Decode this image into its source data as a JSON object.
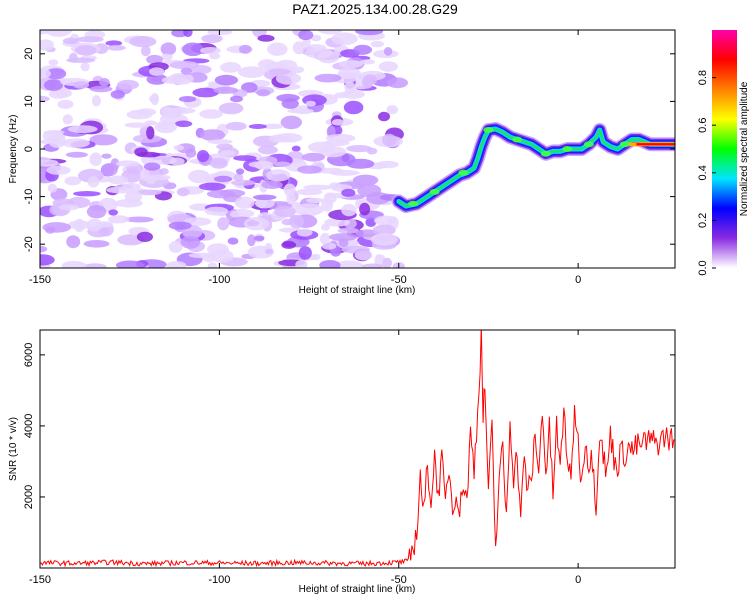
{
  "title": "PAZ1.2025.134.00.28.G29",
  "chart_data": [
    {
      "type": "heatmap",
      "xlabel": "Height of straight line (km)",
      "ylabel": "Frequency (Hz)",
      "xlim": [
        -150,
        27
      ],
      "ylim": [
        -25,
        25
      ],
      "xticks": [
        -150,
        -100,
        -50,
        0
      ],
      "yticks": [
        -20,
        -10,
        0,
        10,
        20
      ],
      "noise_region_x": [
        -150,
        -50
      ],
      "signal_track": {
        "x": [
          -50,
          -48,
          -45,
          -42,
          -40,
          -37,
          -35,
          -33,
          -31,
          -29,
          -28,
          -27,
          -26,
          -25,
          -23,
          -21,
          -19,
          -17,
          -15,
          -13,
          -11,
          -9,
          -7,
          -5,
          -3,
          -1,
          1,
          3,
          5,
          6,
          7,
          9,
          11,
          13,
          15,
          17,
          20,
          23,
          27
        ],
        "y": [
          -11,
          -12,
          -11.5,
          -10,
          -9,
          -7.5,
          -6.5,
          -5.5,
          -5,
          -4,
          -2,
          0.5,
          2.5,
          4,
          4.2,
          3.5,
          2.5,
          2,
          1.5,
          1,
          0,
          -1,
          -0.5,
          -0.5,
          0,
          0,
          0,
          1,
          2.5,
          4,
          1.5,
          0.5,
          0,
          1,
          2,
          2,
          1,
          1,
          1
        ]
      },
      "colorbar": {
        "label": "Normalized spectral amplitude",
        "range": [
          0,
          1
        ],
        "ticks": [
          0.0,
          0.2,
          0.4,
          0.6,
          0.8
        ],
        "colors": [
          "#ffffff",
          "#8a2be2",
          "#0000ff",
          "#00e5ff",
          "#00ff00",
          "#ffff00",
          "#ff8000",
          "#ff0000",
          "#ff00aa"
        ]
      }
    },
    {
      "type": "line",
      "xlabel": "Height of straight line (km)",
      "ylabel": "SNR (10 * v/v)",
      "xlim": [
        -150,
        27
      ],
      "ylim": [
        0,
        6700
      ],
      "xticks": [
        -150,
        -100,
        -50,
        0
      ],
      "yticks": [
        2000,
        4000,
        6000
      ],
      "grid": false,
      "series": [
        {
          "color": "#ff0000",
          "x": [
            -150,
            -140,
            -130,
            -120,
            -110,
            -100,
            -90,
            -80,
            -70,
            -60,
            -50,
            -47,
            -45,
            -44,
            -43,
            -42,
            -41,
            -40,
            -39,
            -38,
            -37,
            -36,
            -35,
            -34,
            -33,
            -32,
            -31,
            -30,
            -29,
            -28,
            -27,
            -26.5,
            -26,
            -25,
            -24,
            -23,
            -22,
            -21,
            -20,
            -19,
            -18,
            -17,
            -16,
            -15,
            -14,
            -13,
            -12,
            -11,
            -10,
            -9,
            -8,
            -7,
            -6,
            -5,
            -4,
            -3,
            -2,
            -1,
            0,
            1,
            2,
            3,
            4,
            5,
            6,
            7,
            8,
            9,
            10,
            11,
            12,
            13,
            14,
            15,
            16,
            18,
            20,
            22,
            24,
            27
          ],
          "y": [
            150,
            130,
            160,
            120,
            150,
            140,
            130,
            150,
            140,
            120,
            160,
            200,
            1000,
            2600,
            1500,
            2900,
            1900,
            3100,
            2100,
            3000,
            1800,
            2900,
            1600,
            2300,
            1500,
            2500,
            1900,
            3800,
            2800,
            4400,
            6600,
            4300,
            5100,
            2100,
            3900,
            500,
            2600,
            3300,
            1400,
            4200,
            2600,
            3200,
            1500,
            3000,
            2200,
            2400,
            3900,
            2500,
            4600,
            2600,
            3900,
            2100,
            4000,
            2700,
            4500,
            3100,
            2300,
            4600,
            3500,
            2400,
            3700,
            2900,
            3100,
            1800,
            3900,
            3200,
            2600,
            3800,
            3100,
            2900,
            3300,
            3200,
            3400,
            3300,
            3400,
            3500,
            3600,
            3500,
            3700,
            3600
          ]
        }
      ]
    }
  ]
}
